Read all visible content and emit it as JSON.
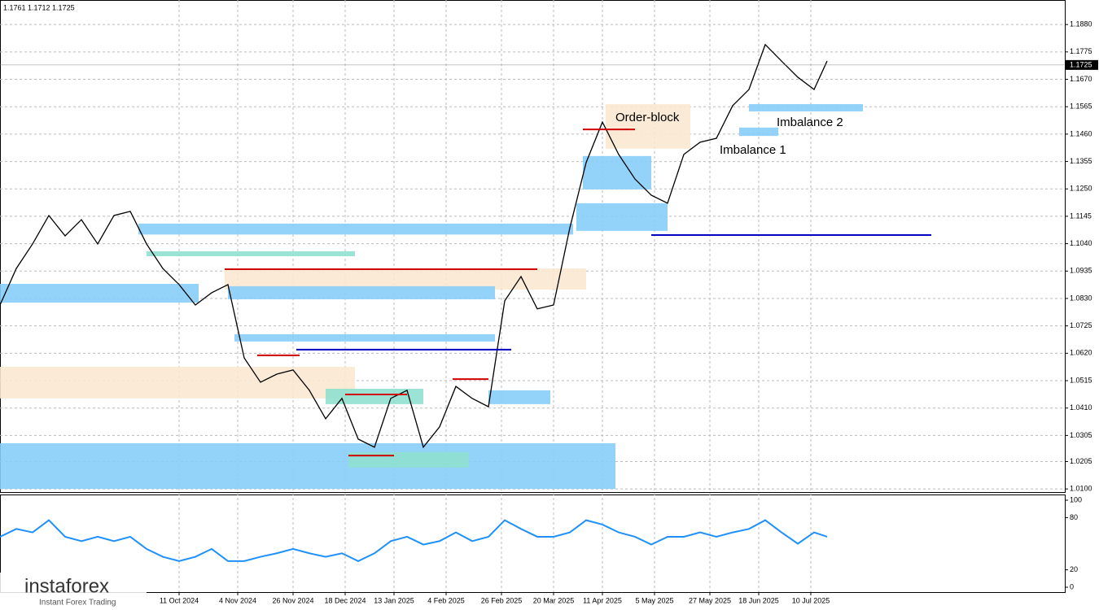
{
  "chart_data": [
    {
      "type": "line",
      "header": "1.1761 1.1712 1.1725",
      "current_price": 1.1725,
      "xlim": [
        0,
        327
      ],
      "ylim": [
        1.0088,
        1.1974
      ],
      "grid": true,
      "xticks": [
        {
          "value": 55,
          "label": "11 Oct 2024"
        },
        {
          "value": 73,
          "label": "4 Nov 2024"
        },
        {
          "value": 90,
          "label": "26 Nov 2024"
        },
        {
          "value": 106,
          "label": "18 Dec 2024"
        },
        {
          "value": 121,
          "label": "13 Jan 2025"
        },
        {
          "value": 137,
          "label": "4 Feb 2025"
        },
        {
          "value": 154,
          "label": "26 Feb 2025"
        },
        {
          "value": 170,
          "label": "20 Mar 2025"
        },
        {
          "value": 185,
          "label": "11 Apr 2025"
        },
        {
          "value": 201,
          "label": "5 May 2025"
        },
        {
          "value": 218,
          "label": "27 May 2025"
        },
        {
          "value": 233,
          "label": "18 Jun 2025"
        },
        {
          "value": 249,
          "label": "10 Jul 2025"
        }
      ],
      "yticks": [
        {
          "value": 1.01,
          "label": "1.0100"
        },
        1.0205,
        1.0305,
        {
          "value": 1.041,
          "label": "1.0410"
        },
        1.0515,
        {
          "value": 1.062,
          "label": "1.0620"
        },
        1.0725,
        {
          "value": 1.083,
          "label": "1.0830"
        },
        1.0935,
        {
          "value": 1.104,
          "label": "1.1040"
        },
        1.1145,
        {
          "value": 1.125,
          "label": "1.1250"
        },
        1.1355,
        {
          "value": 1.146,
          "label": "1.1460"
        },
        1.1565,
        {
          "value": 1.167,
          "label": "1.1670"
        },
        1.1775,
        {
          "value": 1.188,
          "label": "1.1880"
        }
      ],
      "x": [
        0,
        5,
        10,
        15,
        20,
        25,
        30,
        35,
        40,
        45,
        50,
        55,
        60,
        65,
        70,
        75,
        80,
        85,
        90,
        95,
        100,
        105,
        110,
        115,
        120,
        125,
        130,
        135,
        140,
        145,
        150,
        155,
        160,
        165,
        170,
        175,
        180,
        185,
        190,
        195,
        200,
        205,
        210,
        215,
        220,
        225,
        230,
        235,
        240,
        245,
        250,
        254
      ],
      "series": [
        {
          "color": "#000000",
          "values": [
            1.0805,
            1.0945,
            1.1039,
            1.1148,
            1.107,
            1.1132,
            1.1039,
            1.1148,
            1.1164,
            1.1039,
            1.0945,
            1.0883,
            1.0805,
            1.0852,
            1.0883,
            1.0602,
            1.0509,
            1.054,
            1.0556,
            1.0478,
            1.0369,
            1.0447,
            1.0291,
            1.026,
            1.0447,
            1.0478,
            1.026,
            1.0338,
            1.0493,
            1.0447,
            1.0415,
            1.0821,
            1.0914,
            1.079,
            1.0805,
            1.1101,
            1.1351,
            1.1506,
            1.1382,
            1.1288,
            1.1226,
            1.1195,
            1.1382,
            1.1429,
            1.1444,
            1.1569,
            1.1631,
            1.1803,
            1.174,
            1.1678,
            1.1631,
            1.174
          ]
        }
      ],
      "zones": [
        {
          "color": "#87cefa",
          "x": [
            0,
            189
          ],
          "price": [
            1.01,
            1.0275
          ]
        },
        {
          "color": "#fae8d2",
          "x": [
            0,
            109
          ],
          "price": [
            1.0447,
            1.0568
          ]
        },
        {
          "color": "#fae8d2",
          "x": [
            69,
            180
          ],
          "price": [
            1.0864,
            1.0945
          ]
        },
        {
          "color": "#87cefa",
          "x": [
            42.5,
            176
          ],
          "price": [
            1.1075,
            1.1117
          ]
        },
        {
          "color": "#87cefa",
          "x": [
            0,
            61
          ],
          "price": [
            1.0814,
            1.0886
          ]
        },
        {
          "color": "#87cefa",
          "x": [
            70,
            152
          ],
          "price": [
            1.0827,
            1.0877
          ]
        },
        {
          "color": "#87cefa",
          "x": [
            72,
            152
          ],
          "price": [
            1.0665,
            1.0693
          ]
        },
        {
          "color": "#87cefa",
          "x": [
            150,
            169
          ],
          "price": [
            1.0425,
            1.0478
          ]
        },
        {
          "color": "#8fe0d0",
          "x": [
            100,
            130
          ],
          "price": [
            1.0425,
            1.0484
          ]
        },
        {
          "color": "#8fe0d0",
          "x": [
            45,
            109
          ],
          "price": [
            1.0992,
            1.1011
          ]
        },
        {
          "color": "#8fe0d0",
          "x": [
            107,
            144
          ],
          "price": [
            1.0182,
            1.0241
          ]
        },
        {
          "color": "#87cefa",
          "x": [
            177,
            205
          ],
          "price": [
            1.1089,
            1.1195
          ]
        },
        {
          "color": "#87cefa",
          "x": [
            179,
            200
          ],
          "price": [
            1.1248,
            1.1376
          ]
        },
        {
          "color": "#fae8d2",
          "x": [
            186,
            212
          ],
          "price": [
            1.1404,
            1.1575
          ]
        },
        {
          "color": "#87cefa",
          "x": [
            227,
            239
          ],
          "price": [
            1.1453,
            1.1485
          ]
        },
        {
          "color": "#87cefa",
          "x": [
            230,
            265
          ],
          "price": [
            1.1547,
            1.1575
          ]
        }
      ],
      "levels": [
        {
          "color": "#d00000",
          "x": [
            69,
            165
          ],
          "price": 1.0942
        },
        {
          "color": "#0000c0",
          "x": [
            91,
            157
          ],
          "price": 1.0634
        },
        {
          "color": "#0000c0",
          "x": [
            200,
            286
          ],
          "price": 1.1073
        },
        {
          "color": "#d00000",
          "x": [
            179,
            195
          ],
          "price": 1.1478
        },
        {
          "color": "#d00000",
          "x": [
            79,
            92
          ],
          "price": 1.0612
        },
        {
          "color": "#d00000",
          "x": [
            106,
            125
          ],
          "price": 1.0462
        },
        {
          "color": "#d00000",
          "x": [
            139,
            150
          ],
          "price": 1.0521
        },
        {
          "color": "#d00000",
          "x": [
            107,
            121
          ],
          "price": 1.0228
        }
      ],
      "annotations": [
        "Order-block",
        "Imbalance 1",
        "Imbalance 2"
      ],
      "logo": "instaforex",
      "logo_tagline": "Instant Forex Trading"
    },
    {
      "type": "line",
      "ylim": [
        0,
        100
      ],
      "xlim": [
        0,
        327
      ],
      "yticks": [
        0,
        20,
        80,
        100
      ],
      "x": [
        0,
        5,
        10,
        15,
        20,
        25,
        30,
        35,
        40,
        45,
        50,
        55,
        60,
        65,
        70,
        75,
        80,
        85,
        90,
        95,
        100,
        105,
        110,
        115,
        120,
        125,
        130,
        135,
        140,
        145,
        150,
        155,
        160,
        165,
        170,
        175,
        180,
        185,
        190,
        195,
        200,
        205,
        210,
        215,
        220,
        225,
        230,
        235,
        240,
        245,
        250,
        254
      ],
      "series": [
        {
          "color": "#1e90ff",
          "values": [
            58,
            67,
            63,
            77,
            58,
            53,
            58,
            53,
            58,
            44,
            35,
            30,
            35,
            44,
            30,
            30,
            35,
            39,
            44,
            39,
            35,
            39,
            30,
            39,
            53,
            58,
            49,
            53,
            63,
            53,
            58,
            77,
            67,
            58,
            58,
            63,
            77,
            72,
            63,
            58,
            49,
            58,
            58,
            63,
            58,
            63,
            67,
            77,
            63,
            50,
            63,
            58
          ]
        }
      ]
    }
  ]
}
